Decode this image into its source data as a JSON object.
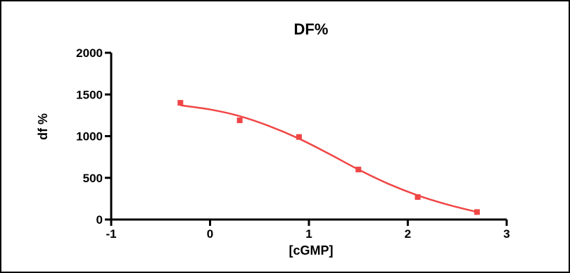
{
  "chart_data": {
    "type": "scatter",
    "title": "DF%",
    "xlabel": "[cGMP]",
    "ylabel": "df %",
    "xlim": [
      -1,
      3
    ],
    "ylim": [
      0,
      2000
    ],
    "x_ticks": [
      "-1",
      "0",
      "1",
      "2",
      "3"
    ],
    "y_ticks": [
      "0",
      "500",
      "1000",
      "1500",
      "2000"
    ],
    "grid": false,
    "series": [
      {
        "color": "#f04646",
        "marker": "square",
        "x": [
          -0.3,
          0.3,
          0.9,
          1.5,
          2.1,
          2.7
        ],
        "y": [
          1400,
          1190,
          990,
          600,
          270,
          90
        ],
        "fit_curve": {
          "x": [
            -0.3,
            0.0,
            0.3,
            0.6,
            0.9,
            1.2,
            1.5,
            1.8,
            2.1,
            2.4,
            2.7
          ],
          "y": [
            1370,
            1320,
            1240,
            1120,
            970,
            790,
            600,
            430,
            290,
            180,
            90
          ]
        }
      }
    ]
  }
}
